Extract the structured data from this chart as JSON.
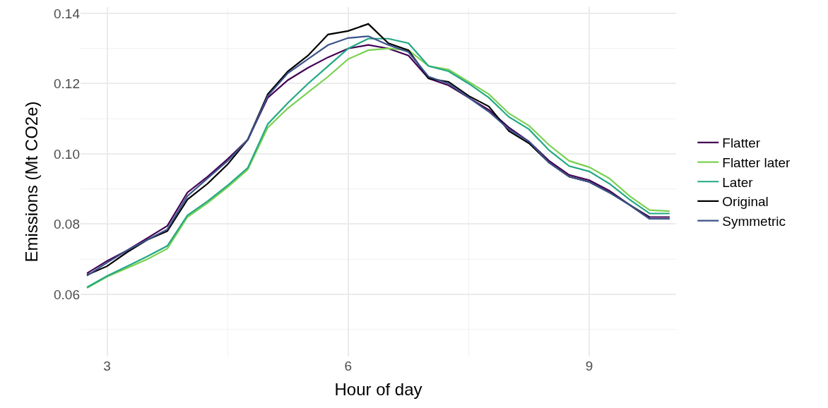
{
  "chart_data": {
    "type": "line",
    "xlabel": "Hour of day",
    "ylabel": "Emissions (Mt CO2e)",
    "x": [
      2.75,
      3.0,
      3.25,
      3.5,
      3.75,
      4.0,
      4.25,
      4.5,
      4.75,
      5.0,
      5.25,
      5.5,
      5.75,
      6.0,
      6.25,
      6.5,
      6.75,
      7.0,
      7.25,
      7.5,
      7.75,
      8.0,
      8.25,
      8.5,
      8.75,
      9.0,
      9.25,
      9.5,
      9.75,
      10.0
    ],
    "series": [
      {
        "name": "Flatter",
        "color": "#440154",
        "values": [
          0.066,
          0.0695,
          0.0725,
          0.076,
          0.0795,
          0.089,
          0.0935,
          0.0985,
          0.104,
          0.116,
          0.121,
          0.1245,
          0.1275,
          0.13,
          0.131,
          0.13,
          0.128,
          0.1215,
          0.1195,
          0.116,
          0.1125,
          0.1075,
          0.1035,
          0.098,
          0.094,
          0.0925,
          0.0895,
          0.0855,
          0.082,
          0.082
        ]
      },
      {
        "name": "Flatter later",
        "color": "#7ad151",
        "values": [
          0.0618,
          0.065,
          0.0675,
          0.07,
          0.073,
          0.082,
          0.086,
          0.0905,
          0.0955,
          0.1075,
          0.113,
          0.1175,
          0.122,
          0.127,
          0.1295,
          0.13,
          0.1295,
          0.125,
          0.124,
          0.1205,
          0.117,
          0.1115,
          0.108,
          0.1025,
          0.098,
          0.0962,
          0.093,
          0.088,
          0.084,
          0.0837
        ]
      },
      {
        "name": "Later",
        "color": "#22a884",
        "values": [
          0.062,
          0.0652,
          0.068,
          0.0708,
          0.0738,
          0.0825,
          0.0865,
          0.091,
          0.096,
          0.1085,
          0.1145,
          0.12,
          0.125,
          0.13,
          0.1328,
          0.1328,
          0.1315,
          0.125,
          0.1235,
          0.12,
          0.116,
          0.1105,
          0.107,
          0.101,
          0.0965,
          0.095,
          0.0915,
          0.087,
          0.083,
          0.083
        ]
      },
      {
        "name": "Original",
        "color": "#000000",
        "values": [
          0.0655,
          0.068,
          0.072,
          0.0755,
          0.078,
          0.087,
          0.0915,
          0.097,
          0.104,
          0.117,
          0.1235,
          0.128,
          0.134,
          0.135,
          0.137,
          0.1315,
          0.1295,
          0.1215,
          0.1205,
          0.1165,
          0.1135,
          0.1065,
          0.103,
          0.0975,
          0.0935,
          0.092,
          0.089,
          0.0855,
          0.0815,
          0.0815
        ]
      },
      {
        "name": "Symmetric",
        "color": "#3b528b",
        "values": [
          0.0653,
          0.069,
          0.0725,
          0.0755,
          0.0785,
          0.088,
          0.093,
          0.098,
          0.104,
          0.1165,
          0.123,
          0.127,
          0.131,
          0.133,
          0.1335,
          0.131,
          0.129,
          0.122,
          0.12,
          0.116,
          0.112,
          0.107,
          0.1035,
          0.0975,
          0.0935,
          0.092,
          0.089,
          0.0855,
          0.0815,
          0.0815
        ]
      }
    ],
    "xlim": [
      2.67,
      10.08
    ],
    "xticks": [
      3,
      6,
      9
    ],
    "ylim": [
      0.0423,
      0.1418
    ],
    "yticks": [
      {
        "value": 0.06,
        "label": "0.06"
      },
      {
        "value": 0.08,
        "label": "0.08"
      },
      {
        "value": 0.1,
        "label": "0.10"
      },
      {
        "value": 0.12,
        "label": "0.12"
      },
      {
        "value": 0.14,
        "label": "0.14"
      }
    ],
    "grid": true,
    "legend": "right",
    "line_style": "solid",
    "marker": "none"
  }
}
